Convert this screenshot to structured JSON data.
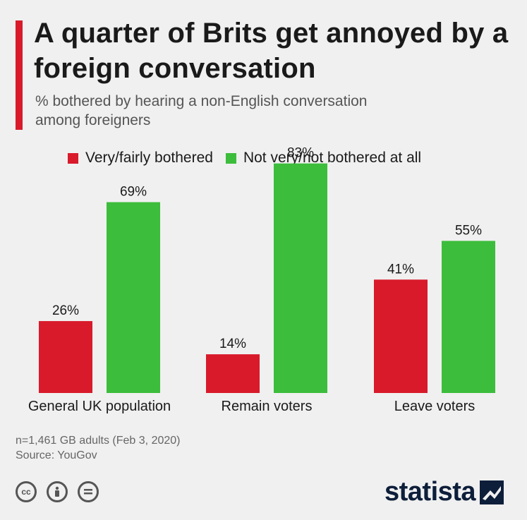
{
  "title": "A quarter of Brits get annoyed by a foreign conversation",
  "subtitle": "% bothered by hearing a non-English conversation among foreigners",
  "footnote": {
    "sample": "n=1,461 GB adults (Feb 3, 2020)",
    "source": "Source: YouGov"
  },
  "brand": {
    "name": "statista",
    "color": "#0d1e3a"
  },
  "colors": {
    "accent": "#d81a2b",
    "background": "#f0f0f0"
  },
  "chart_data": {
    "type": "bar",
    "categories": [
      "General UK population",
      "Remain voters",
      "Leave voters"
    ],
    "series": [
      {
        "name": "Very/fairly bothered",
        "color": "#d81a2b",
        "values": [
          26,
          14,
          41
        ],
        "labels": [
          "26%",
          "14%",
          "41%"
        ]
      },
      {
        "name": "Not very/not bothered at all",
        "color": "#3cbd3c",
        "values": [
          69,
          83,
          55
        ],
        "labels": [
          "69%",
          "83%",
          "55%"
        ]
      }
    ],
    "ylim": [
      0,
      100
    ],
    "grid": false,
    "legend": "top"
  }
}
